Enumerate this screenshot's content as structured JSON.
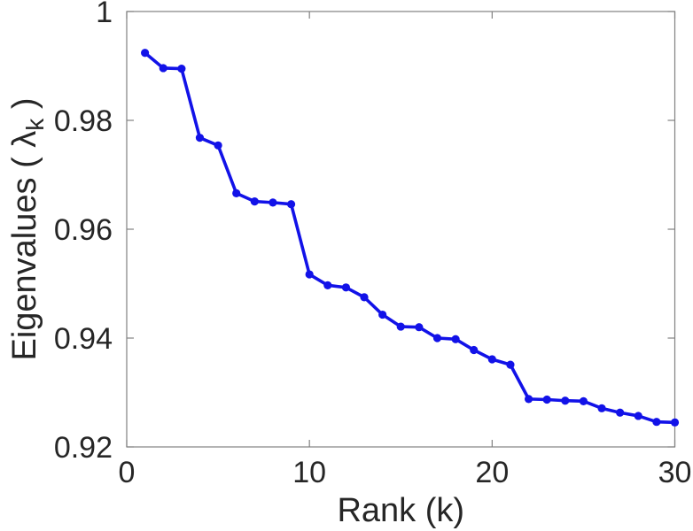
{
  "chart_data": {
    "type": "line",
    "title": "",
    "xlabel": "Rank (k)",
    "ylabel": "Eigenvalues ( λ_k )",
    "ylabel_parts": {
      "pre": "Eigenvalues ( ",
      "symbol": "λ",
      "subscript": "k",
      "post": " )"
    },
    "series": [
      {
        "name": "eigenvalues",
        "x": [
          1,
          2,
          3,
          4,
          5,
          6,
          7,
          8,
          9,
          10,
          11,
          12,
          13,
          14,
          15,
          16,
          17,
          18,
          19,
          20,
          21,
          22,
          23,
          24,
          25,
          26,
          27,
          28,
          29,
          30
        ],
        "y": [
          0.9924,
          0.9896,
          0.9895,
          0.9768,
          0.9754,
          0.9666,
          0.9651,
          0.9649,
          0.9646,
          0.9517,
          0.9497,
          0.9493,
          0.9475,
          0.9443,
          0.9421,
          0.942,
          0.94,
          0.9398,
          0.9378,
          0.9361,
          0.9351,
          0.9288,
          0.9287,
          0.9285,
          0.9284,
          0.9271,
          0.9263,
          0.9257,
          0.9246,
          0.9245
        ]
      }
    ],
    "xlim": [
      0,
      30
    ],
    "ylim": [
      0.92,
      1.0
    ],
    "xticks": {
      "values": [
        0,
        10,
        20,
        30
      ],
      "labels": [
        "0",
        "10",
        "20",
        "30"
      ]
    },
    "yticks": {
      "values": [
        0.92,
        0.94,
        0.96,
        0.98,
        1.0
      ],
      "labels": [
        "0.92",
        "0.94",
        "0.96",
        "0.98",
        "1"
      ]
    },
    "grid": false,
    "legend": null,
    "marker": "filled-circle",
    "colors": {
      "line": "#1212e8",
      "marker": "#1212e8",
      "axis_box": "#818181",
      "tick_text": "#262626",
      "label_text": "#262626",
      "background": "#ffffff"
    }
  }
}
